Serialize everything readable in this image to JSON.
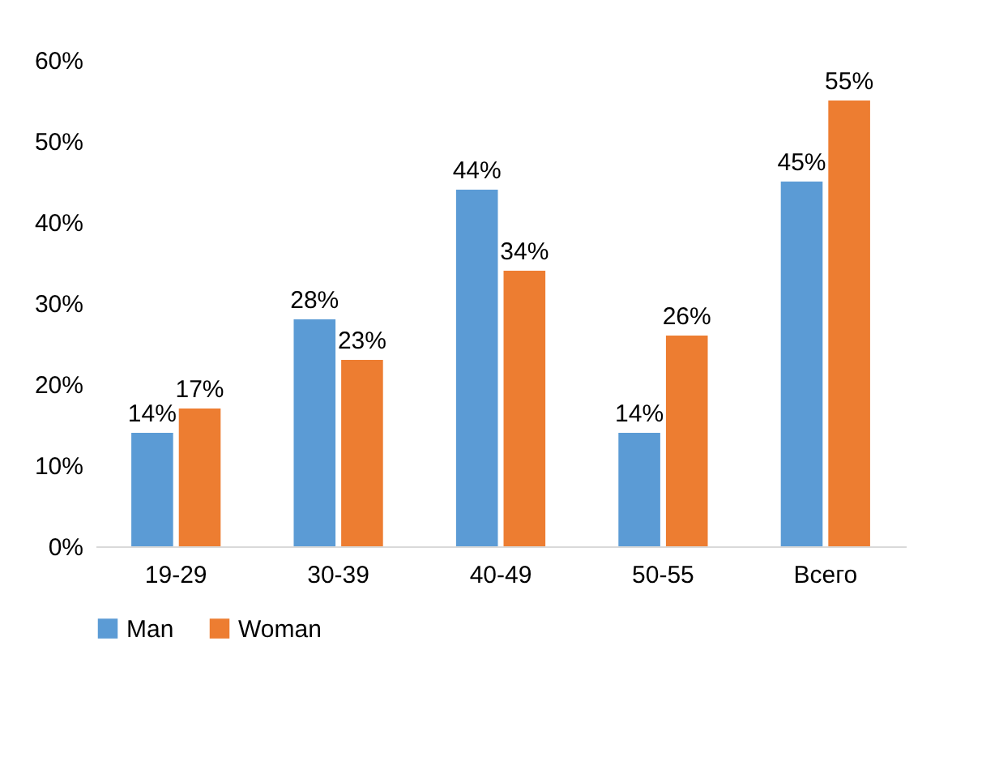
{
  "chart_data": {
    "type": "bar",
    "categories": [
      "19-29",
      "30-39",
      "40-49",
      "50-55",
      "Всего"
    ],
    "series": [
      {
        "name": "Man",
        "color": "#5b9bd5",
        "values": [
          14,
          28,
          44,
          14,
          45
        ],
        "value_labels": [
          "14%",
          "28%",
          "44%",
          "14%",
          "45%"
        ]
      },
      {
        "name": "Woman",
        "color": "#ed7d31",
        "values": [
          17,
          23,
          34,
          26,
          55
        ],
        "value_labels": [
          "17%",
          "23%",
          "34%",
          "26%",
          "55%"
        ]
      }
    ],
    "ylim": [
      0,
      60
    ],
    "yticks": [
      {
        "value": 0,
        "label": "0%"
      },
      {
        "value": 10,
        "label": "10%"
      },
      {
        "value": 20,
        "label": "20%"
      },
      {
        "value": 30,
        "label": "30%"
      },
      {
        "value": 40,
        "label": "40%"
      },
      {
        "value": 50,
        "label": "50%"
      },
      {
        "value": 60,
        "label": "60%"
      }
    ],
    "grid": false,
    "legend": "bottom"
  }
}
